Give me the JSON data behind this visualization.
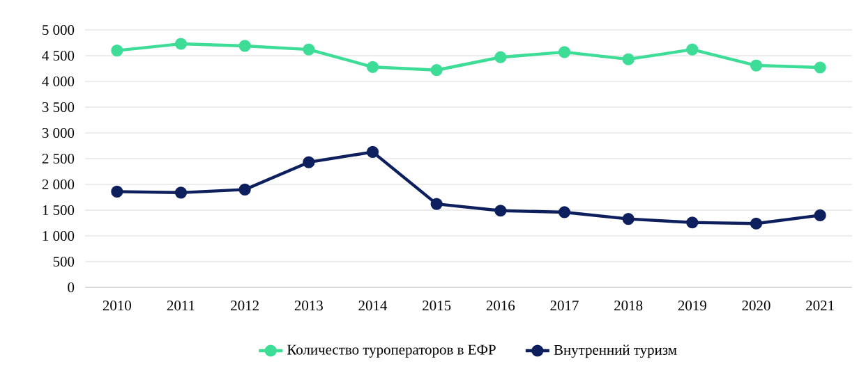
{
  "chart_data": {
    "type": "line",
    "categories": [
      "2010",
      "2011",
      "2012",
      "2013",
      "2014",
      "2015",
      "2016",
      "2017",
      "2018",
      "2019",
      "2020",
      "2021"
    ],
    "series": [
      {
        "name": "Количество туроператоров в ЕФР",
        "color": "#3ddc97",
        "values": [
          4600,
          4730,
          4690,
          4620,
          4280,
          4220,
          4470,
          4570,
          4430,
          4620,
          4310,
          4270
        ]
      },
      {
        "name": "Внутренний туризм",
        "color": "#0d1f5c",
        "values": [
          1860,
          1840,
          1900,
          2430,
          2630,
          1620,
          1490,
          1460,
          1330,
          1260,
          1240,
          1400
        ]
      }
    ],
    "ylim": [
      0,
      5000
    ],
    "yticks": [
      0,
      500,
      {
        "value": 1000,
        "label": "1 000"
      },
      {
        "value": 1500,
        "label": "1 500"
      },
      {
        "value": 2000,
        "label": "2 000"
      },
      {
        "value": 2500,
        "label": "2 500"
      },
      {
        "value": 3000,
        "label": "3 000"
      },
      {
        "value": 3500,
        "label": "3 500"
      },
      {
        "value": 4000,
        "label": "4 000"
      },
      {
        "value": 4500,
        "label": "4 500"
      },
      {
        "value": 5000,
        "label": "5 000"
      }
    ],
    "grid": "y",
    "legend": "bottom",
    "marker": "circle",
    "line_style": "solid"
  }
}
